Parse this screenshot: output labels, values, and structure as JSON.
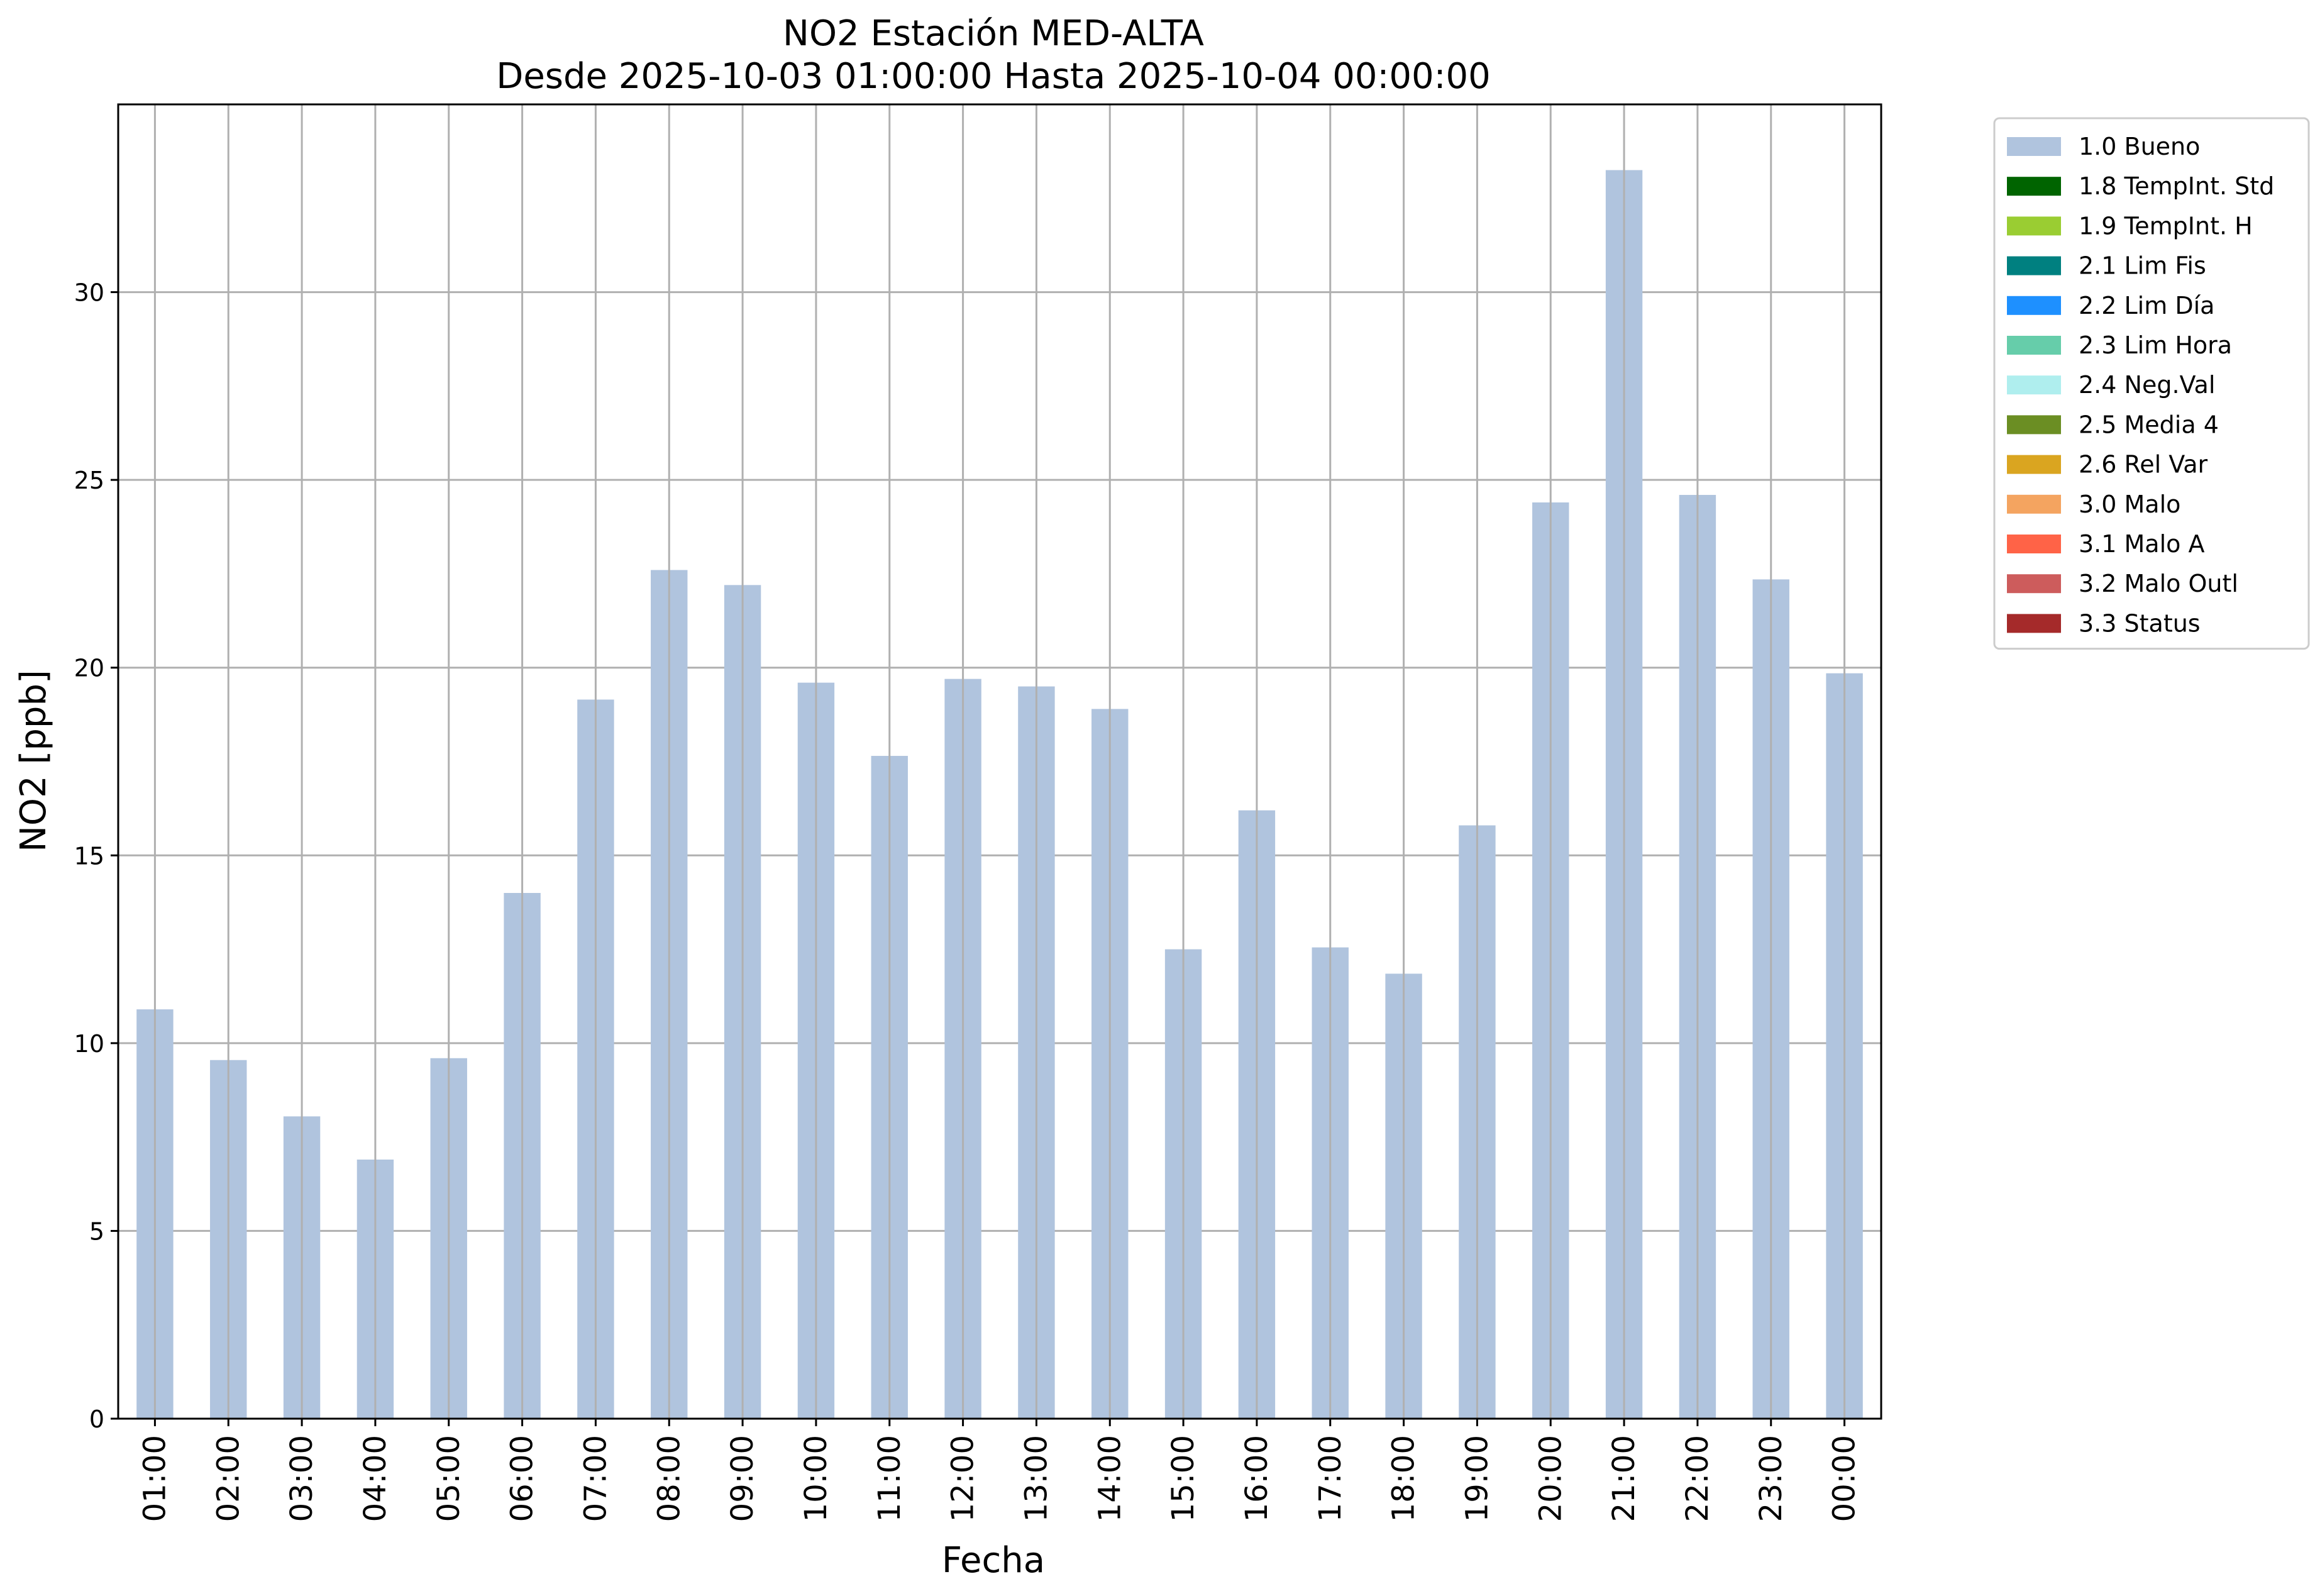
{
  "chart_data": {
    "type": "bar",
    "title": "NO2 Estación MED-ALTA",
    "subtitle": "Desde 2025-10-03 01:00:00 Hasta 2025-10-04 00:00:00",
    "xlabel": "Fecha",
    "ylabel": "NO2 [ppb]",
    "ylim": [
      0,
      35
    ],
    "yticks": [
      0,
      5,
      10,
      15,
      20,
      25,
      30
    ],
    "grid": true,
    "legend_placement": "outside-top-right",
    "categories": [
      "01:00",
      "02:00",
      "03:00",
      "04:00",
      "05:00",
      "06:00",
      "07:00",
      "08:00",
      "09:00",
      "10:00",
      "11:00",
      "12:00",
      "13:00",
      "14:00",
      "15:00",
      "16:00",
      "17:00",
      "18:00",
      "19:00",
      "20:00",
      "21:00",
      "22:00",
      "23:00",
      "00:00"
    ],
    "series": [
      {
        "name": "1.0 Bueno",
        "color": "#b0c4de",
        "values": [
          10.9,
          9.55,
          8.05,
          6.9,
          9.6,
          14.0,
          19.15,
          22.6,
          22.2,
          19.6,
          17.65,
          19.7,
          19.5,
          18.9,
          12.5,
          16.2,
          12.55,
          11.85,
          15.8,
          24.4,
          33.25,
          24.6,
          22.35,
          19.85
        ]
      }
    ],
    "legend": [
      {
        "label": "1.0 Bueno",
        "color": "#b0c4de"
      },
      {
        "label": "1.8 TempInt. Std",
        "color": "#006400"
      },
      {
        "label": "1.9 TempInt. H",
        "color": "#9acd32"
      },
      {
        "label": "2.1 Lim Fis",
        "color": "#008080"
      },
      {
        "label": "2.2 Lim Día",
        "color": "#1e90ff"
      },
      {
        "label": "2.3 Lim Hora",
        "color": "#66cdaa"
      },
      {
        "label": "2.4 Neg.Val",
        "color": "#afeeee"
      },
      {
        "label": "2.5 Media 4",
        "color": "#6b8e23"
      },
      {
        "label": "2.6 Rel Var",
        "color": "#daa520"
      },
      {
        "label": "3.0 Malo",
        "color": "#f4a460"
      },
      {
        "label": "3.1 Malo A",
        "color": "#ff6347"
      },
      {
        "label": "3.2 Malo Outl",
        "color": "#cd5c5c"
      },
      {
        "label": "3.3 Status",
        "color": "#a52a2a"
      }
    ]
  }
}
